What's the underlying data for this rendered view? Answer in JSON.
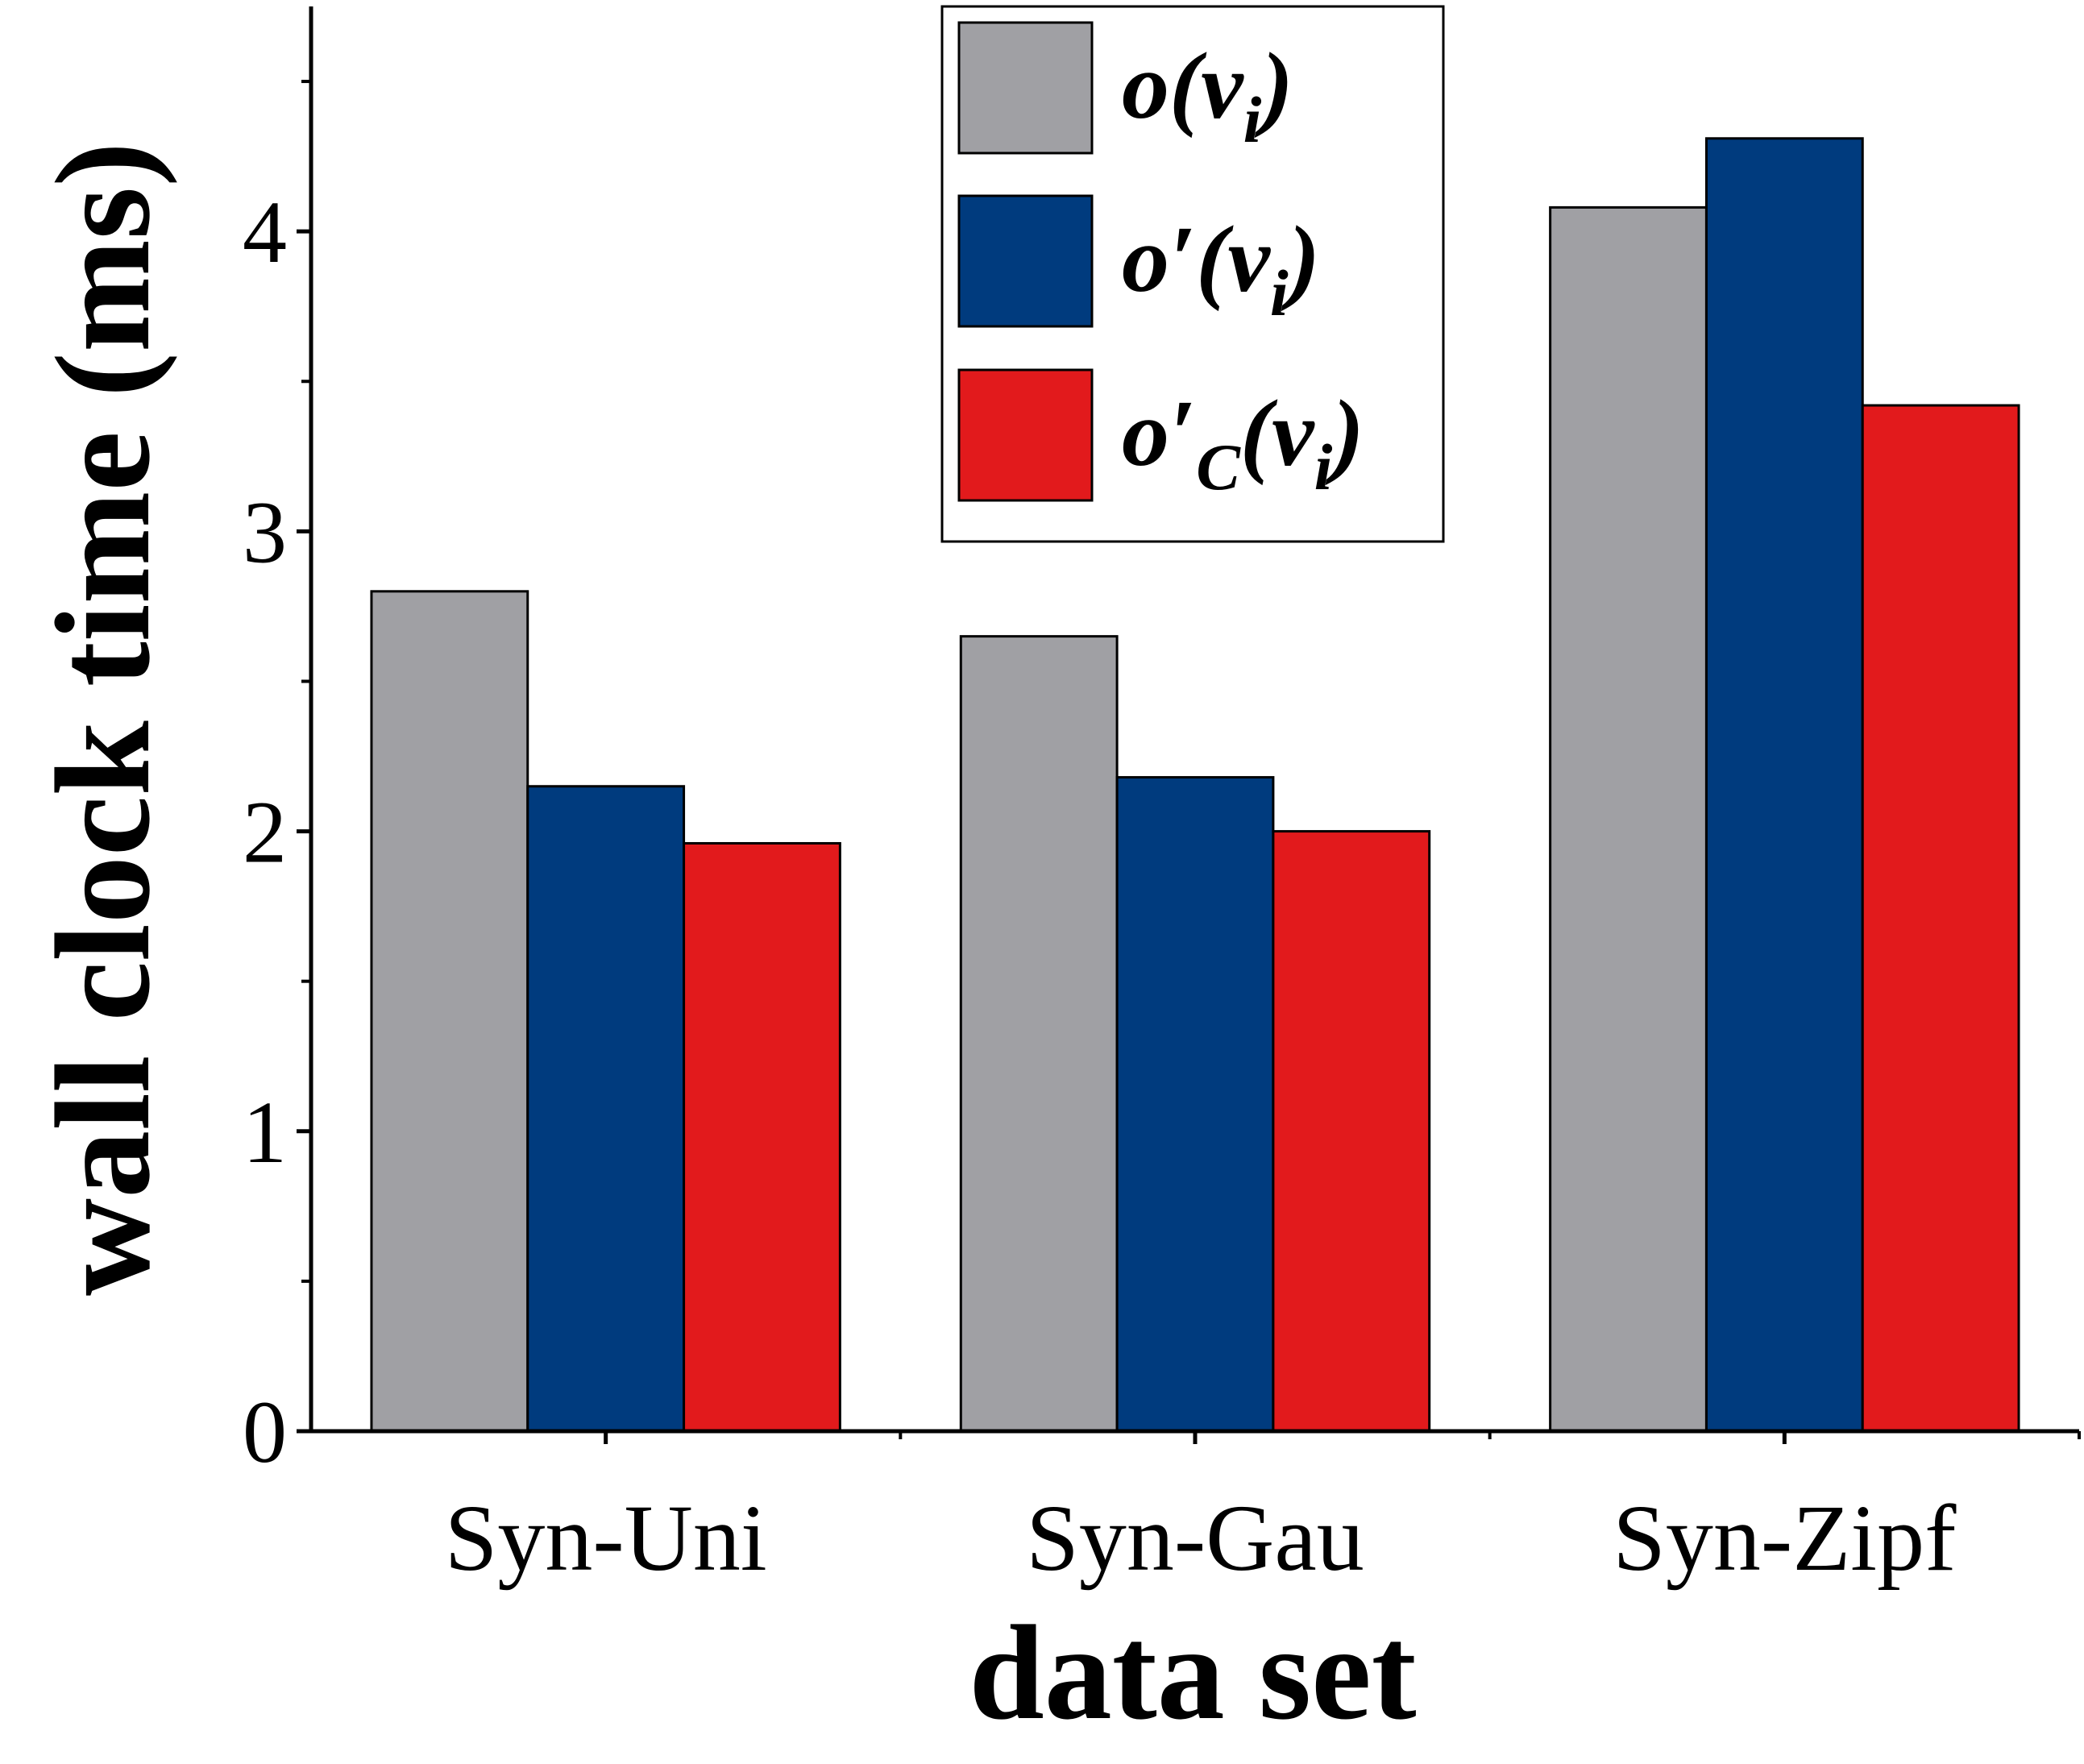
{
  "chart_data": {
    "type": "bar",
    "title": "",
    "xlabel": "data set",
    "ylabel": "wall clock time (ms)",
    "categories": [
      "Syn-Uni",
      "Syn-Gau",
      "Syn-Zipf"
    ],
    "series": [
      {
        "name": "o(v_i)",
        "legend": {
          "base": "o(v",
          "sub": "i",
          "close": ")"
        },
        "color": "#a0a0a4",
        "values": [
          2.8,
          2.65,
          4.08
        ]
      },
      {
        "name": "o'(v_i)",
        "legend": {
          "base": "o′(v",
          "sub": "i",
          "close": ")"
        },
        "color": "#003b7e",
        "values": [
          2.15,
          2.18,
          4.31
        ]
      },
      {
        "name": "o'_C(v_i)",
        "legend": {
          "base": "o′",
          "sub1": "C",
          "mid": "(v",
          "sub": "i",
          "close": ")"
        },
        "color": "#e21a1c",
        "values": [
          1.96,
          2.0,
          3.42
        ]
      }
    ],
    "ylim": [
      0,
      4.75
    ],
    "yticks": [
      0,
      1,
      2,
      3,
      4
    ],
    "yticks_minor": [
      0.5,
      1.5,
      2.5,
      3.5,
      4.5
    ],
    "grid": false,
    "legend_position": "top-center"
  }
}
